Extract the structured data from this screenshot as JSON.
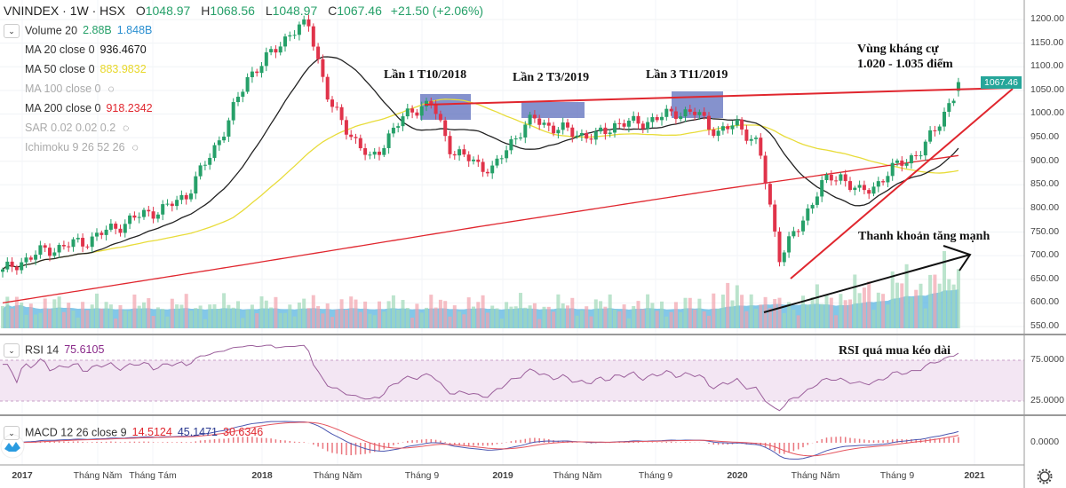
{
  "header": {
    "symbol": "VNINDEX",
    "interval": "1W",
    "exchange": "HSX",
    "open": "1048.97",
    "high": "1068.56",
    "low": "1048.97",
    "close": "1067.46",
    "change": "+21.50 (+2.06%)",
    "o_label": "O",
    "h_label": "H",
    "l_label": "L",
    "c_label": "C"
  },
  "indicators": {
    "volume": {
      "label": "Volume 20",
      "v1": "2.88B",
      "v2": "1.848B"
    },
    "ma20": {
      "label": "MA 20 close 0",
      "value": "936.4670",
      "color": "#111111"
    },
    "ma50": {
      "label": "MA 50 close 0",
      "value": "883.9832",
      "color": "#e8e02a"
    },
    "ma100": {
      "label": "MA 100 close 0",
      "hidden": true
    },
    "ma200": {
      "label": "MA 200 close 0",
      "value": "918.2342",
      "color": "#e0262e"
    },
    "sar": {
      "label": "SAR 0.02 0.02 0.2",
      "hidden": true
    },
    "ichimoku": {
      "label": "Ichimoku 9 26 52 26",
      "hidden": true
    },
    "rsi": {
      "label": "RSI 14",
      "value": "75.6105"
    },
    "macd": {
      "label": "MACD 12 26 close 9",
      "v1": "14.5124",
      "v2": "45.1471",
      "v3": "30.6346"
    }
  },
  "annotations": {
    "touch1": "Lần 1 T10/2018",
    "touch2": "Lần 2 T3/2019",
    "touch3": "Lần 3 T11/2019",
    "resistance_line1": "Vùng kháng cự",
    "resistance_line2": "1.020 - 1.035 điểm",
    "liquidity": "Thanh khoản tăng mạnh",
    "rsi_note": "RSI quá mua kéo dài"
  },
  "last_price_badge": "1067.46",
  "chart_data": {
    "type": "candlestick",
    "price_axis": {
      "ticks": [
        "1200.00",
        "1150.00",
        "1100.00",
        "1050.00",
        "1000.00",
        "950.00",
        "900.00",
        "850.00",
        "800.00",
        "750.00",
        "700.00",
        "650.00",
        "600.00",
        "550.00"
      ],
      "range": [
        550,
        1200
      ]
    },
    "rsi_axis": {
      "ticks": [
        "75.0000",
        "25.0000"
      ],
      "overbought": 75,
      "oversold": 25
    },
    "macd_axis": {
      "ticks": [
        "0.0000"
      ]
    },
    "time_axis": [
      {
        "label": "2017",
        "bold": true
      },
      {
        "label": "Tháng Năm"
      },
      {
        "label": "Tháng Tám"
      },
      {
        "label": "2018",
        "bold": true
      },
      {
        "label": "Tháng Năm"
      },
      {
        "label": "Tháng 9"
      },
      {
        "label": "2019",
        "bold": true
      },
      {
        "label": "Tháng Năm"
      },
      {
        "label": "Tháng 9"
      },
      {
        "label": "2020",
        "bold": true
      },
      {
        "label": "Tháng Năm"
      },
      {
        "label": "Tháng 9"
      },
      {
        "label": "2021",
        "bold": true
      }
    ],
    "monthly_close_approx": [
      665,
      690,
      710,
      720,
      730,
      750,
      770,
      790,
      800,
      830,
      900,
      980,
      1080,
      1120,
      1170,
      1190,
      1020,
      960,
      900,
      960,
      1010,
      1020,
      920,
      900,
      880,
      950,
      990,
      970,
      960,
      950,
      980,
      980,
      990,
      1005,
      1000,
      960,
      980,
      930,
      700,
      760,
      850,
      870,
      830,
      860,
      900,
      920,
      1000,
      1060
    ],
    "ma200_approx": [
      600,
      680,
      762,
      840,
      912
    ],
    "last_candle": {
      "open": 1048.97,
      "high": 1068.56,
      "low": 1048.97,
      "close": 1067.46
    },
    "colors": {
      "up": "#26a069",
      "down": "#e0334a",
      "volume_ma": "#5ab4e0",
      "rsi": "#9b5f9b",
      "macd": "#4a56b0",
      "signal": "#e5545e"
    }
  }
}
